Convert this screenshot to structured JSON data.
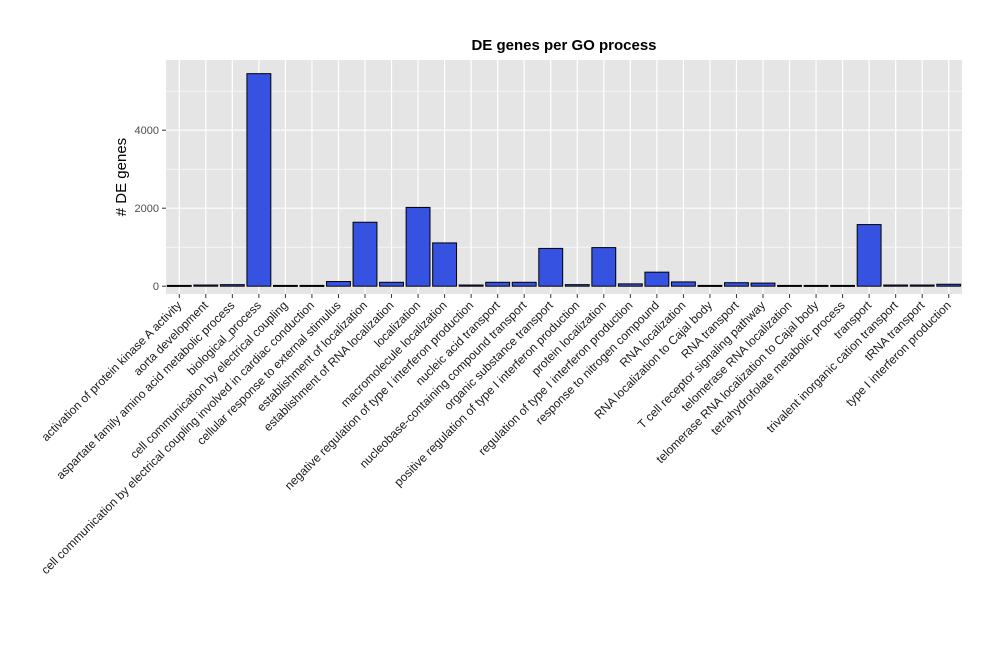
{
  "chart_data": {
    "type": "bar",
    "title": "DE genes per GO process",
    "xlabel": "",
    "ylabel": "# DE genes",
    "ylim": [
      -200,
      5800
    ],
    "yticks": [
      0,
      2000,
      4000
    ],
    "grid": true,
    "colors": {
      "bar_fill": "#3552e0",
      "bar_stroke": "#000000",
      "panel_bg": "#e5e5e5",
      "grid_major": "#ffffff"
    },
    "categories": [
      "activation of protein kinase A activity",
      "aorta development",
      "aspartate family amino acid metabolic process",
      "biological_process",
      "cell communication by electrical coupling",
      "cell communication by electrical coupling involved in cardiac conduction",
      "cellular response to external stimulus",
      "establishment of localization",
      "establishment of RNA localization",
      "localization",
      "macromolecule localization",
      "negative regulation of type I interferon production",
      "nucleic acid transport",
      "nucleobase-containing compound transport",
      "organic substance transport",
      "positive regulation of type I interferon production",
      "protein localization",
      "regulation of type I interferon production",
      "response to nitrogen compound",
      "RNA localization",
      "RNA localization to Cajal body",
      "RNA transport",
      "T cell receptor signaling pathway",
      "telomerase RNA localization",
      "telomerase RNA localization to Cajal body",
      "tetrahydrofolate metabolic process",
      "transport",
      "trivalent inorganic cation transport",
      "tRNA transport",
      "type I interferon production"
    ],
    "values": [
      20,
      30,
      40,
      5450,
      20,
      20,
      120,
      1640,
      100,
      2020,
      1110,
      30,
      100,
      100,
      970,
      40,
      990,
      60,
      360,
      110,
      20,
      90,
      80,
      20,
      20,
      20,
      1580,
      30,
      30,
      50
    ]
  }
}
